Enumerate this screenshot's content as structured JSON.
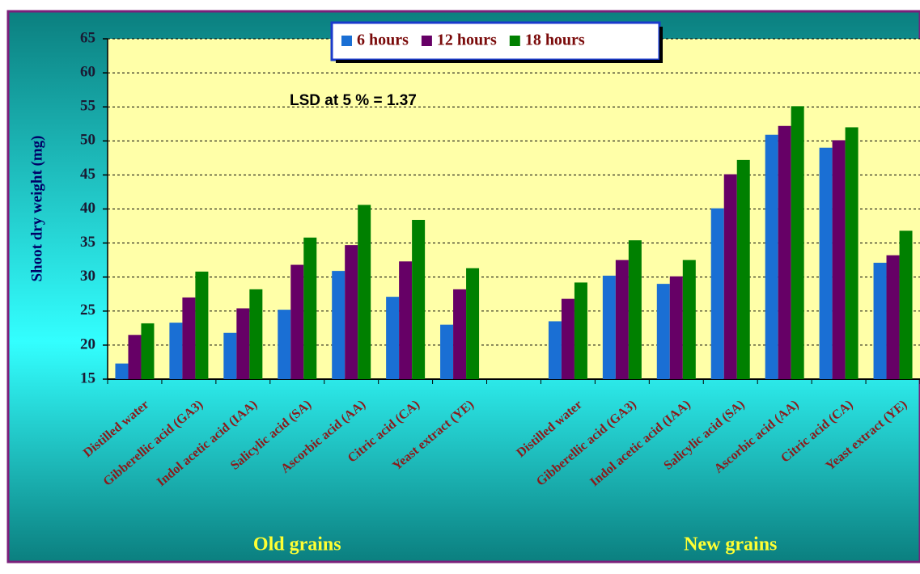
{
  "chart_data": {
    "type": "bar",
    "y_label": "Shoot dry weight (mg)",
    "annotation": "LSD at 5 % = 1.37",
    "categories": [
      "Distilled water",
      "Gibberellic acid (GA3)",
      "Indol acetic acid (IAA)",
      "Salicylic acid (SA)",
      "Ascorbic acid (AA)",
      "Citric acid (CA)",
      "Yeast extract (YE)",
      null,
      "Distilled water",
      "Gibberellic acid (GA3)",
      "Indol acetic acid (IAA)",
      "Salicylic acid (SA)",
      "Ascorbic acid (AA)",
      "Citric acid (CA)",
      "Yeast extract (YE)"
    ],
    "groups": [
      "Old grains",
      "New grains"
    ],
    "series": [
      {
        "name": "6 hours",
        "color": "#1a6fd4",
        "values": [
          17.3,
          23.3,
          21.8,
          25.2,
          30.9,
          27.1,
          23.0,
          null,
          23.5,
          30.2,
          29.0,
          40.1,
          50.9,
          49.0,
          32.1
        ]
      },
      {
        "name": "12 hours",
        "color": "#660066",
        "values": [
          21.5,
          27.0,
          25.4,
          31.8,
          34.7,
          32.3,
          28.2,
          null,
          26.8,
          32.5,
          30.1,
          45.1,
          52.2,
          50.1,
          33.2
        ]
      },
      {
        "name": "18 hours",
        "color": "#008000",
        "values": [
          23.2,
          30.8,
          28.2,
          35.8,
          40.6,
          38.4,
          31.3,
          null,
          29.2,
          35.4,
          32.5,
          47.2,
          55.1,
          52.0,
          36.8
        ]
      }
    ],
    "ylim": [
      15,
      65
    ],
    "yticks": [
      15,
      20,
      25,
      30,
      35,
      40,
      45,
      50,
      55,
      60,
      65
    ],
    "grid": true,
    "legend": "top"
  }
}
